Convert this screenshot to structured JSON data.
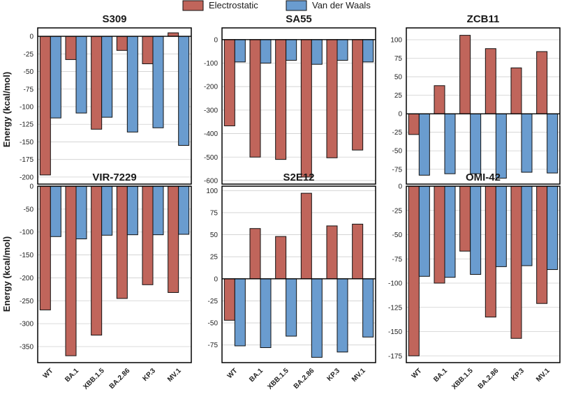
{
  "legend": {
    "items": [
      {
        "label": "Electrostatic",
        "color": "#c0655b"
      },
      {
        "label": "Van der Waals",
        "color": "#6a9ccf"
      }
    ]
  },
  "ylabel": "Energy (kcal/mol)",
  "chart_data": [
    {
      "type": "bar",
      "title": "S309",
      "categories": [
        "WT",
        "BA.1",
        "XBB.1.5",
        "BA.2.86",
        "KP.3",
        "MV.1"
      ],
      "series": [
        {
          "name": "Electrostatic",
          "values": [
            -197,
            -33,
            -132,
            -20,
            -39,
            5
          ]
        },
        {
          "name": "Van der Waals",
          "values": [
            -116,
            -109,
            -115,
            -136,
            -130,
            -155
          ]
        }
      ],
      "ylim": [
        -210,
        12
      ],
      "yticks": [
        0,
        -25,
        -50,
        -75,
        -100,
        -125,
        -150,
        -175,
        -200
      ],
      "xlabel": "",
      "ylabel": "Energy (kcal/mol)",
      "grid": true
    },
    {
      "type": "bar",
      "title": "SA55",
      "categories": [
        "WT",
        "BA.1",
        "XBB.1.5",
        "BA.2.86",
        "KP.3",
        "MV.1"
      ],
      "series": [
        {
          "name": "Electrostatic",
          "values": [
            -367,
            -500,
            -510,
            -585,
            -503,
            -470
          ]
        },
        {
          "name": "Van der Waals",
          "values": [
            -95,
            -100,
            -88,
            -105,
            -88,
            -95
          ]
        }
      ],
      "ylim": [
        -615,
        50
      ],
      "yticks": [
        0,
        -100,
        -200,
        -300,
        -400,
        -500,
        -600
      ],
      "xlabel": "",
      "ylabel": "",
      "grid": true
    },
    {
      "type": "bar",
      "title": "ZCB11",
      "categories": [
        "WT",
        "BA.1",
        "XBB.1.5",
        "BA.2.86",
        "KP.3",
        "MV.1"
      ],
      "series": [
        {
          "name": "Electrostatic",
          "values": [
            -28,
            38,
            106,
            88,
            62,
            84
          ]
        },
        {
          "name": "Van der Waals",
          "values": [
            -83,
            -81,
            -81,
            -87,
            -79,
            -80
          ]
        }
      ],
      "ylim": [
        -95,
        116
      ],
      "yticks": [
        100,
        75,
        50,
        25,
        0,
        -25,
        -50,
        -75
      ],
      "xlabel": "",
      "ylabel": "",
      "grid": true
    },
    {
      "type": "bar",
      "title": "VIR-7229",
      "categories": [
        "WT",
        "BA.1",
        "XBB.1.5",
        "BA.2.86",
        "KP.3",
        "MV.1"
      ],
      "series": [
        {
          "name": "Electrostatic",
          "values": [
            -270,
            -370,
            -325,
            -245,
            -215,
            -232
          ]
        },
        {
          "name": "Van der Waals",
          "values": [
            -110,
            -115,
            -107,
            -106,
            -106,
            -105
          ]
        }
      ],
      "ylim": [
        -385,
        0
      ],
      "yticks": [
        0,
        -50,
        -100,
        -150,
        -200,
        -250,
        -300,
        -350
      ],
      "xlabel": "",
      "ylabel": "Energy (kcal/mol)",
      "grid": true
    },
    {
      "type": "bar",
      "title": "S2E12",
      "categories": [
        "WT",
        "BA.1",
        "XBB.1.5",
        "BA.2.86",
        "KP.3",
        "MV.1"
      ],
      "series": [
        {
          "name": "Electrostatic",
          "values": [
            -47,
            57,
            48,
            97,
            60,
            62
          ]
        },
        {
          "name": "Van der Waals",
          "values": [
            -76,
            -78,
            -65,
            -89,
            -83,
            -66
          ]
        }
      ],
      "ylim": [
        -95,
        105
      ],
      "yticks": [
        100,
        75,
        50,
        25,
        0,
        -25,
        -50,
        -75
      ],
      "xlabel": "",
      "ylabel": "",
      "grid": true
    },
    {
      "type": "bar",
      "title": "OMI-42",
      "categories": [
        "WT",
        "BA.1",
        "XBB.1.5",
        "BA.2.86",
        "KP.3",
        "MV.1"
      ],
      "series": [
        {
          "name": "Electrostatic",
          "values": [
            -175,
            -100,
            -67,
            -135,
            -157,
            -121
          ]
        },
        {
          "name": "Van der Waals",
          "values": [
            -93,
            -94,
            -91,
            -83,
            -82,
            -86
          ]
        }
      ],
      "ylim": [
        -182,
        0
      ],
      "yticks": [
        0,
        -25,
        -50,
        -75,
        -100,
        -125,
        -150,
        -175
      ],
      "xlabel": "",
      "ylabel": "",
      "grid": true
    }
  ]
}
